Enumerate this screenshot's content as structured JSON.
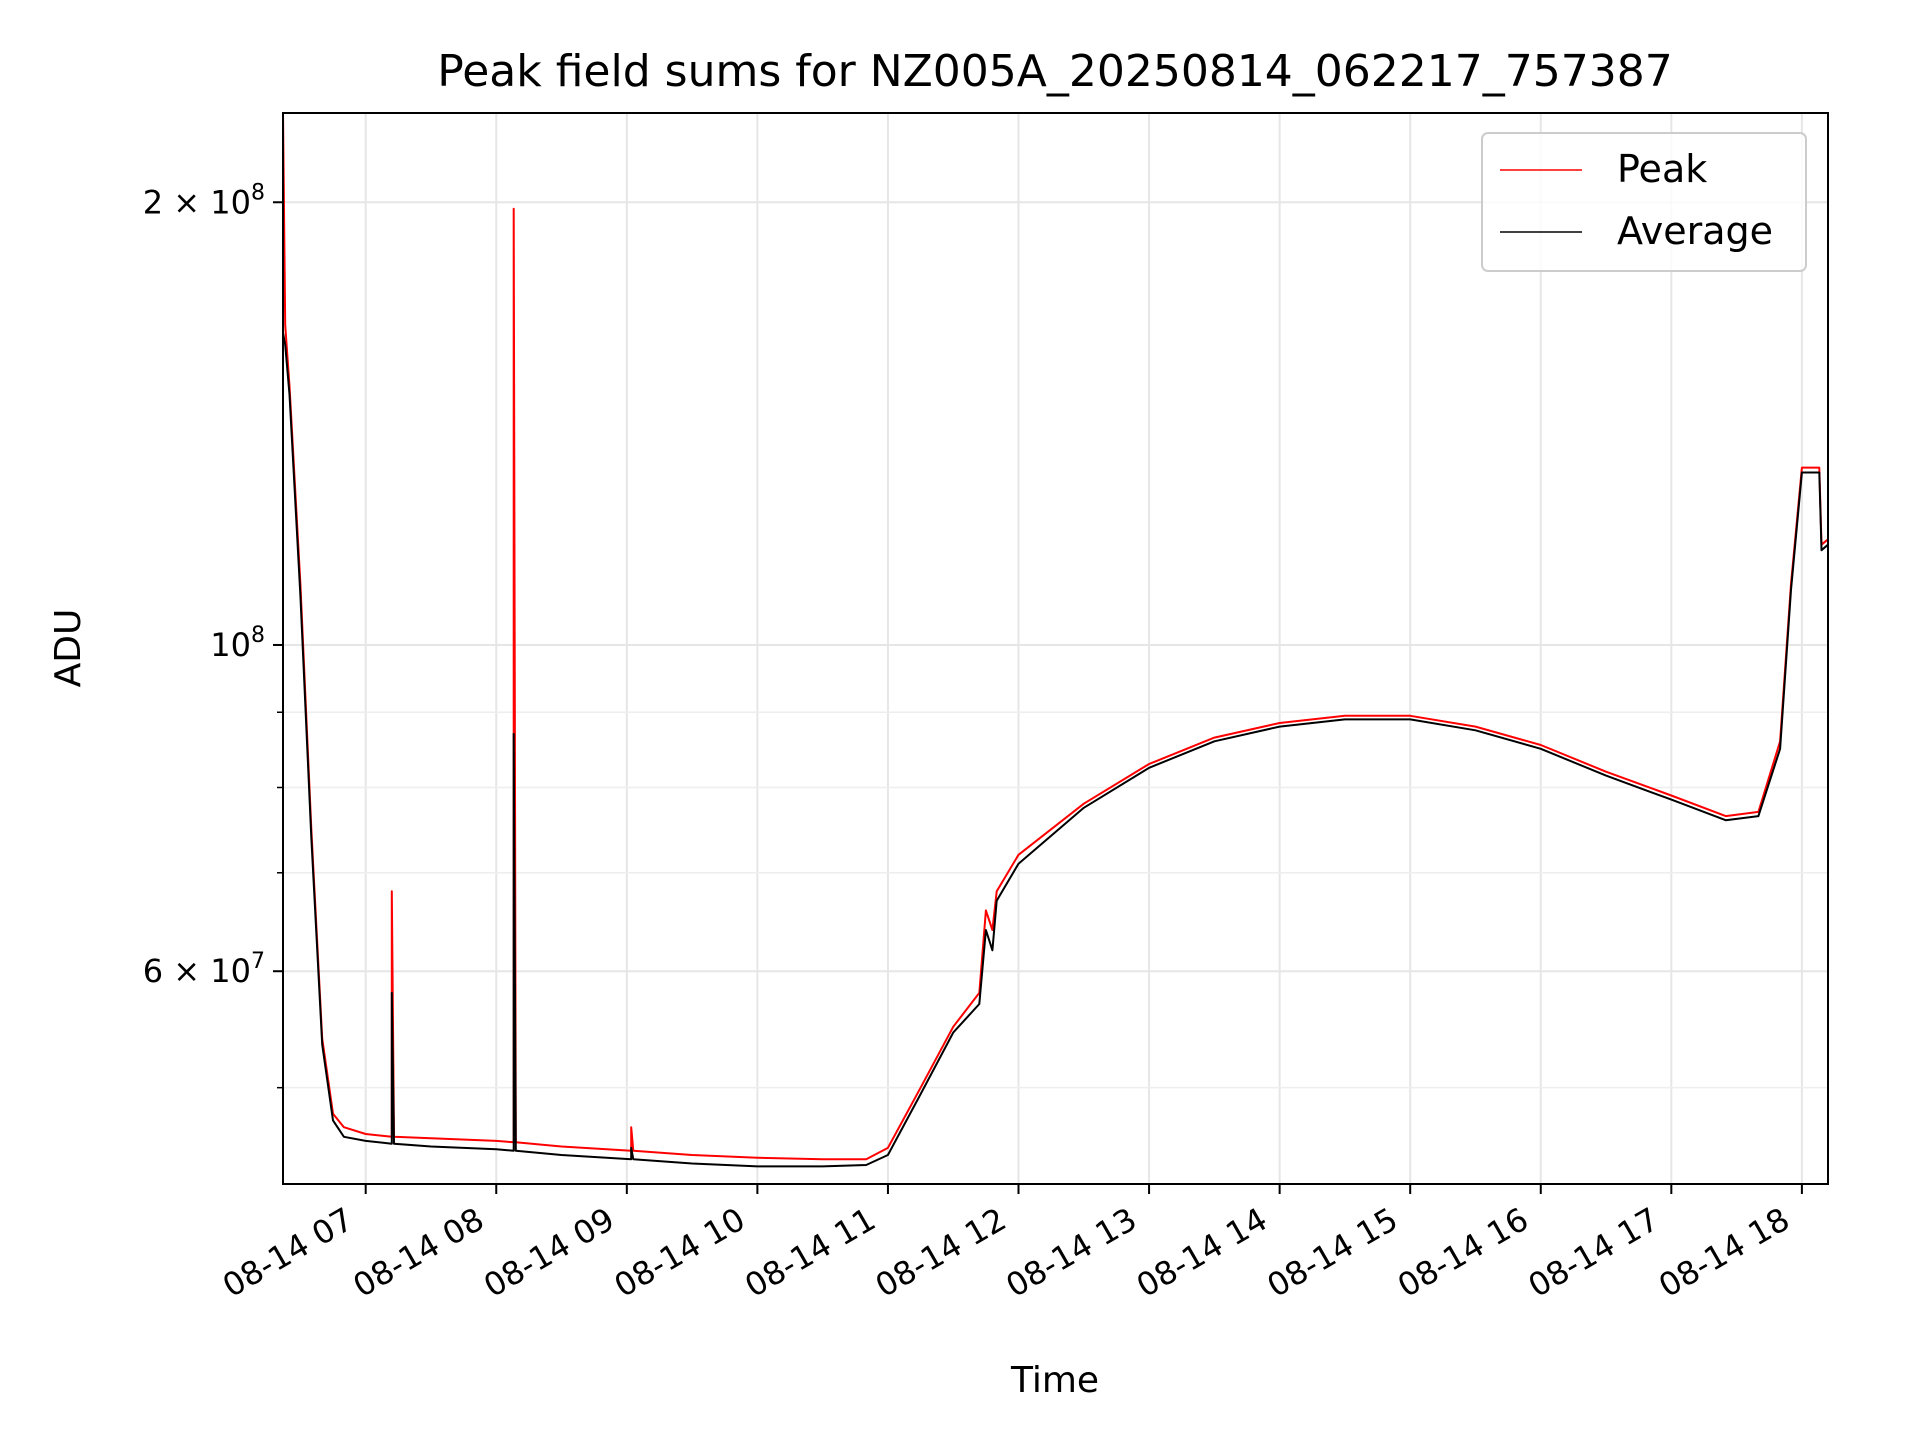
{
  "chart_data": {
    "type": "line",
    "title": "Peak field sums for NZ005A_20250814_062217_757387",
    "xlabel": "Time",
    "ylabel": "ADU",
    "yscale": "log",
    "ylim": [
      43000000,
      230000000
    ],
    "xlim": [
      "2025-08-14 06:22",
      "2025-08-14 18:12"
    ],
    "x_ticks": [
      "08-14 07",
      "08-14 08",
      "08-14 09",
      "08-14 10",
      "08-14 11",
      "08-14 12",
      "08-14 13",
      "08-14 14",
      "08-14 15",
      "08-14 16",
      "08-14 17",
      "08-14 18"
    ],
    "x_tick_values": [
      "2025-08-14 07:00",
      "2025-08-14 08:00",
      "2025-08-14 09:00",
      "2025-08-14 10:00",
      "2025-08-14 11:00",
      "2025-08-14 12:00",
      "2025-08-14 13:00",
      "2025-08-14 14:00",
      "2025-08-14 15:00",
      "2025-08-14 16:00",
      "2025-08-14 17:00",
      "2025-08-14 18:00"
    ],
    "y_ticks": [
      {
        "value": 200000000,
        "mantissa": "2",
        "exponent": "8"
      },
      {
        "value": 100000000,
        "mantissa": "",
        "exponent": "8"
      },
      {
        "value": 60000000,
        "mantissa": "6",
        "exponent": "7"
      }
    ],
    "y_minor_ticks": [
      50000000,
      70000000,
      80000000,
      90000000
    ],
    "grid": true,
    "legend_position": "top-right",
    "series": [
      {
        "name": "Peak",
        "color": "#ff0000",
        "x": [
          "2025-08-14 06:22",
          "2025-08-14 06:23",
          "2025-08-14 06:25",
          "2025-08-14 06:30",
          "2025-08-14 06:35",
          "2025-08-14 06:40",
          "2025-08-14 06:45",
          "2025-08-14 06:50",
          "2025-08-14 07:00",
          "2025-08-14 07:12",
          "2025-08-14 07:12",
          "2025-08-14 07:13",
          "2025-08-14 07:30",
          "2025-08-14 08:00",
          "2025-08-14 08:08",
          "2025-08-14 08:08",
          "2025-08-14 08:09",
          "2025-08-14 08:30",
          "2025-08-14 09:02",
          "2025-08-14 09:02",
          "2025-08-14 09:03",
          "2025-08-14 09:30",
          "2025-08-14 10:00",
          "2025-08-14 10:30",
          "2025-08-14 10:50",
          "2025-08-14 11:00",
          "2025-08-14 11:15",
          "2025-08-14 11:30",
          "2025-08-14 11:42",
          "2025-08-14 11:45",
          "2025-08-14 11:48",
          "2025-08-14 11:50",
          "2025-08-14 12:00",
          "2025-08-14 12:30",
          "2025-08-14 13:00",
          "2025-08-14 13:30",
          "2025-08-14 14:00",
          "2025-08-14 14:30",
          "2025-08-14 15:00",
          "2025-08-14 15:30",
          "2025-08-14 16:00",
          "2025-08-14 16:30",
          "2025-08-14 17:00",
          "2025-08-14 17:25",
          "2025-08-14 17:40",
          "2025-08-14 17:50",
          "2025-08-14 17:55",
          "2025-08-14 18:00",
          "2025-08-14 18:05",
          "2025-08-14 18:08",
          "2025-08-14 18:09",
          "2025-08-14 18:12"
        ],
        "values": [
          230000000,
          165000000,
          150000000,
          110000000,
          75000000,
          54000000,
          48000000,
          47000000,
          46500000,
          46300000,
          68000000,
          46300000,
          46200000,
          46000000,
          45900000,
          198000000,
          45900000,
          45600000,
          45300000,
          47000000,
          45300000,
          45000000,
          44800000,
          44700000,
          44700000,
          45500000,
          50000000,
          55000000,
          58000000,
          66000000,
          64000000,
          68000000,
          72000000,
          78000000,
          83000000,
          86500000,
          88500000,
          89500000,
          89500000,
          88000000,
          85500000,
          82000000,
          79000000,
          76500000,
          77000000,
          86000000,
          110000000,
          132000000,
          132000000,
          132000000,
          117000000,
          118000000
        ]
      },
      {
        "name": "Average",
        "color": "#000000",
        "x": [
          "2025-08-14 06:22",
          "2025-08-14 06:23",
          "2025-08-14 06:25",
          "2025-08-14 06:30",
          "2025-08-14 06:35",
          "2025-08-14 06:40",
          "2025-08-14 06:45",
          "2025-08-14 06:50",
          "2025-08-14 07:00",
          "2025-08-14 07:12",
          "2025-08-14 07:12",
          "2025-08-14 07:13",
          "2025-08-14 07:30",
          "2025-08-14 08:00",
          "2025-08-14 08:08",
          "2025-08-14 08:08",
          "2025-08-14 08:09",
          "2025-08-14 08:30",
          "2025-08-14 09:02",
          "2025-08-14 09:02",
          "2025-08-14 09:03",
          "2025-08-14 09:30",
          "2025-08-14 10:00",
          "2025-08-14 10:30",
          "2025-08-14 10:50",
          "2025-08-14 11:00",
          "2025-08-14 11:15",
          "2025-08-14 11:30",
          "2025-08-14 11:42",
          "2025-08-14 11:45",
          "2025-08-14 11:48",
          "2025-08-14 11:50",
          "2025-08-14 12:00",
          "2025-08-14 12:30",
          "2025-08-14 13:00",
          "2025-08-14 13:30",
          "2025-08-14 14:00",
          "2025-08-14 14:30",
          "2025-08-14 15:00",
          "2025-08-14 15:30",
          "2025-08-14 16:00",
          "2025-08-14 16:30",
          "2025-08-14 17:00",
          "2025-08-14 17:25",
          "2025-08-14 17:40",
          "2025-08-14 17:50",
          "2025-08-14 17:55",
          "2025-08-14 18:00",
          "2025-08-14 18:05",
          "2025-08-14 18:08",
          "2025-08-14 18:09",
          "2025-08-14 18:12"
        ],
        "values": [
          163000000,
          160000000,
          148000000,
          108000000,
          74000000,
          53500000,
          47500000,
          46300000,
          46000000,
          45800000,
          58000000,
          45800000,
          45600000,
          45400000,
          45300000,
          87000000,
          45300000,
          45000000,
          44700000,
          45500000,
          44700000,
          44400000,
          44200000,
          44200000,
          44300000,
          45000000,
          49500000,
          54500000,
          57000000,
          64000000,
          62000000,
          67000000,
          71000000,
          77500000,
          82500000,
          86000000,
          88000000,
          89000000,
          89000000,
          87500000,
          85000000,
          81500000,
          78500000,
          76000000,
          76500000,
          85000000,
          109000000,
          131000000,
          131000000,
          131000000,
          116000000,
          117000000
        ]
      }
    ]
  }
}
